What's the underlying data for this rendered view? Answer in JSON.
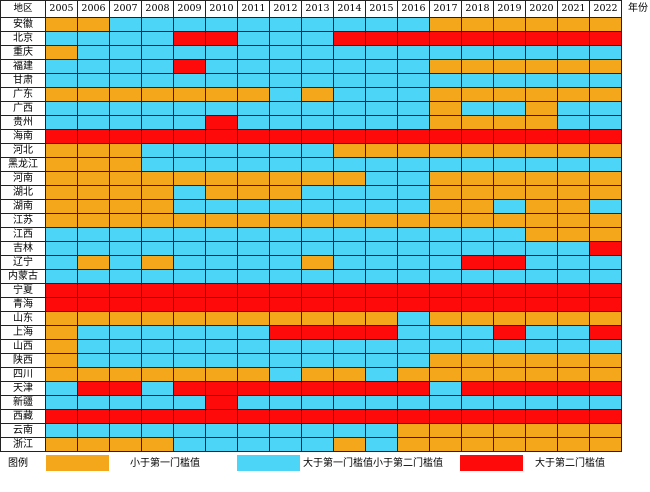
{
  "chart_data": {
    "type": "heatmap",
    "row_header": "地区",
    "col_header_unit": "年份",
    "years": [
      "2005",
      "2006",
      "2007",
      "2008",
      "2009",
      "2010",
      "2011",
      "2012",
      "2013",
      "2014",
      "2015",
      "2016",
      "2017",
      "2018",
      "2019",
      "2020",
      "2021",
      "2022"
    ],
    "colors": {
      "O": "#F5A71B",
      "B": "#4DD5F7",
      "R": "#FF0A0A"
    },
    "legend_title": "图例",
    "legend": [
      {
        "code": "O",
        "label": "小于第一门槛值"
      },
      {
        "code": "B",
        "label": "大于第一门槛值小于第二门槛值"
      },
      {
        "code": "R",
        "label": "大于第二门槛值"
      }
    ],
    "rows": [
      {
        "name": "安徽",
        "values": "OOBBBBBBBBBBOOOOOO"
      },
      {
        "name": "北京",
        "values": "BBBBRRBBBRRRRRRRRR"
      },
      {
        "name": "重庆",
        "values": "OBBBBBBBBBBBBBBBBB"
      },
      {
        "name": "福建",
        "values": "BBBBRBBBBBBBOOOOOO"
      },
      {
        "name": "甘肃",
        "values": "BBBBBBBBBBBBBBBBBB"
      },
      {
        "name": "广东",
        "values": "OOOOOOOBOBBBOOOOOO"
      },
      {
        "name": "广西",
        "values": "BBBBBBBBBBBBOBBOBB"
      },
      {
        "name": "贵州",
        "values": "BBBBBRBBBBBBOOOOBB"
      },
      {
        "name": "海南",
        "values": "RRRRRRRRRRRRRRRRRR"
      },
      {
        "name": "河北",
        "values": "OOOBBBBBBOOOOOOOOO"
      },
      {
        "name": "黑龙江",
        "values": "OOOBBBBBBBBBBBBBBB"
      },
      {
        "name": "河南",
        "values": "OOOOOOOOOOBBOOOOOO"
      },
      {
        "name": "湖北",
        "values": "OOOOBOOOBBBBOOOOOO"
      },
      {
        "name": "湖南",
        "values": "OOOOBBBBBBBBOOBOOB"
      },
      {
        "name": "江苏",
        "values": "OOOOOOOOOOOOOOOOOO"
      },
      {
        "name": "江西",
        "values": "BBBBBBBBBBBBBBBOOO"
      },
      {
        "name": "吉林",
        "values": "BBBBBBBBBBBBBBBBBR"
      },
      {
        "name": "辽宁",
        "values": "BOBOBBBBOBBBBRRBBB"
      },
      {
        "name": "内蒙古",
        "values": "BBBBBBBBBBBBBBBBBB"
      },
      {
        "name": "宁夏",
        "values": "RRRRRRRRRRRRRRRRRR"
      },
      {
        "name": "青海",
        "values": "RRRRRRRRRRRRRRRRRR"
      },
      {
        "name": "山东",
        "values": "OOOOOOOOOOOBOOOOOO"
      },
      {
        "name": "上海",
        "values": "OBBBBBBRRRRBBBRBBR"
      },
      {
        "name": "山西",
        "values": "OBBBBBBBBBBBBBBBBB"
      },
      {
        "name": "陕西",
        "values": "OBBBBBBBBBBBOOOOOO"
      },
      {
        "name": "四川",
        "values": "OOOOOOOBOOBOOOOOOO"
      },
      {
        "name": "天津",
        "values": "BRRBRRRRRRRRBRRRRR"
      },
      {
        "name": "新疆",
        "values": "BBBBBRBBBBBBBBBBBB"
      },
      {
        "name": "西藏",
        "values": "RRRRRRRRRRRRRRRRRR"
      },
      {
        "name": "云南",
        "values": "BBBBBBBBBBBOOOOOOO"
      },
      {
        "name": "浙江",
        "values": "OOOOBBBBBOBOOOOOOO"
      }
    ]
  }
}
